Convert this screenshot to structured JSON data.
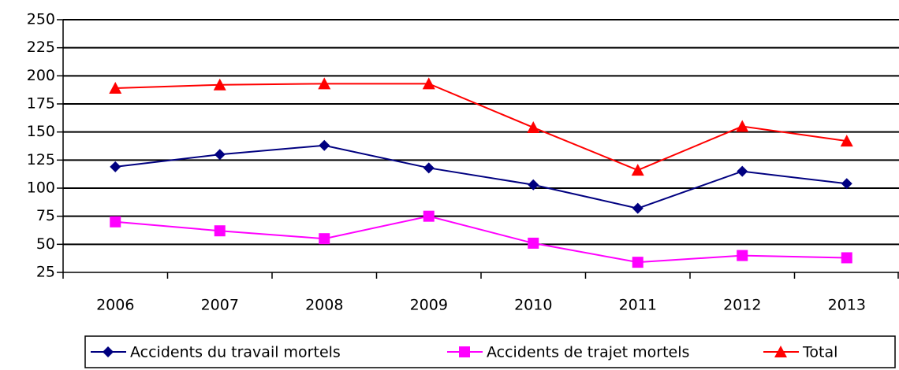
{
  "chart_data": {
    "type": "line",
    "categories": [
      "2006",
      "2007",
      "2008",
      "2009",
      "2010",
      "2011",
      "2012",
      "2013"
    ],
    "series": [
      {
        "name": "Accidents du travail mortels",
        "color": "#000080",
        "marker": "diamond",
        "values": [
          119,
          130,
          138,
          118,
          103,
          82,
          115,
          104
        ]
      },
      {
        "name": "Accidents de trajet mortels",
        "color": "#ff00ff",
        "marker": "square",
        "values": [
          70,
          62,
          55,
          75,
          51,
          34,
          40,
          38
        ]
      },
      {
        "name": "Total",
        "color": "#ff0000",
        "marker": "triangle",
        "values": [
          189,
          192,
          193,
          193,
          154,
          116,
          155,
          142
        ]
      }
    ],
    "ylim": [
      25,
      250
    ],
    "yticks": [
      25,
      50,
      75,
      100,
      125,
      150,
      175,
      200,
      225,
      250
    ],
    "grid": true,
    "legend": "bottom"
  }
}
